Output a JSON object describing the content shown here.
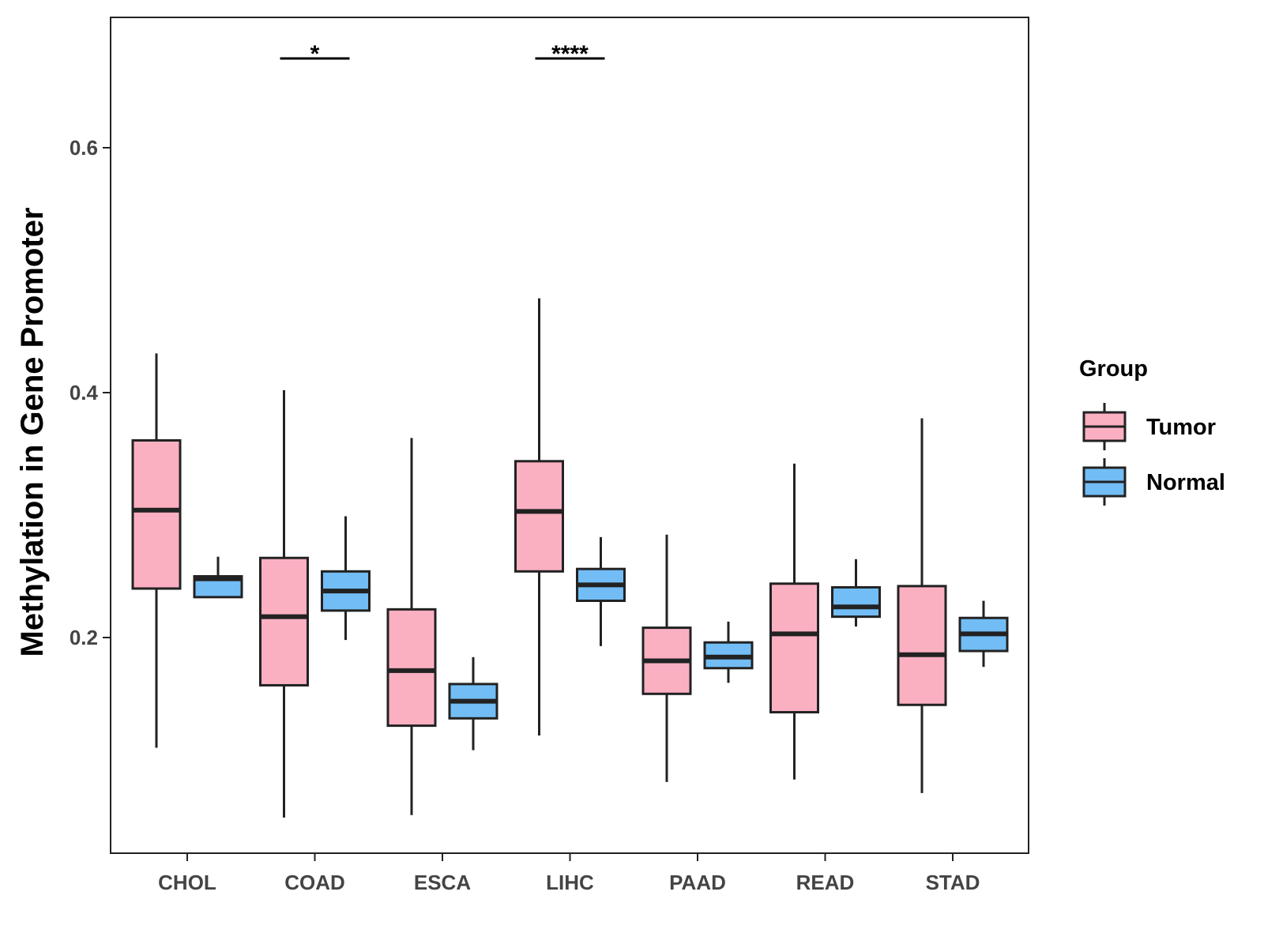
{
  "chart_data": {
    "type": "boxplot",
    "ylabel": "Methylation in Gene Promoter",
    "xlabel": "",
    "ylim": [
      0.04,
      0.7
    ],
    "yticks": [
      0.2,
      0.4,
      0.6
    ],
    "ytick_labels": [
      "0.2",
      "0.4",
      "0.6"
    ],
    "categories": [
      "CHOL",
      "COAD",
      "ESCA",
      "LIHC",
      "PAAD",
      "READ",
      "STAD"
    ],
    "legend": {
      "title": "Group",
      "placement": "right",
      "entries": [
        {
          "name": "Tumor",
          "color": "#FBB0C2"
        },
        {
          "name": "Normal",
          "color": "#72BDF5"
        }
      ]
    },
    "series": [
      {
        "name": "Tumor",
        "color": "#FBB0C2",
        "boxes": [
          {
            "category": "CHOL",
            "min": 0.11,
            "q1": 0.24,
            "median": 0.304,
            "q3": 0.361,
            "max": 0.432
          },
          {
            "category": "COAD",
            "min": 0.053,
            "q1": 0.161,
            "median": 0.217,
            "q3": 0.265,
            "max": 0.402
          },
          {
            "category": "ESCA",
            "min": 0.055,
            "q1": 0.128,
            "median": 0.173,
            "q3": 0.223,
            "max": 0.363
          },
          {
            "category": "LIHC",
            "min": 0.12,
            "q1": 0.254,
            "median": 0.303,
            "q3": 0.344,
            "max": 0.477
          },
          {
            "category": "PAAD",
            "min": 0.082,
            "q1": 0.154,
            "median": 0.181,
            "q3": 0.208,
            "max": 0.284
          },
          {
            "category": "READ",
            "min": 0.084,
            "q1": 0.139,
            "median": 0.203,
            "q3": 0.244,
            "max": 0.342
          },
          {
            "category": "STAD",
            "min": 0.073,
            "q1": 0.145,
            "median": 0.186,
            "q3": 0.242,
            "max": 0.379
          }
        ]
      },
      {
        "name": "Normal",
        "color": "#72BDF5",
        "boxes": [
          {
            "category": "CHOL",
            "min": 0.233,
            "q1": 0.233,
            "median": 0.248,
            "q3": 0.25,
            "max": 0.266
          },
          {
            "category": "COAD",
            "min": 0.198,
            "q1": 0.222,
            "median": 0.238,
            "q3": 0.254,
            "max": 0.299
          },
          {
            "category": "ESCA",
            "min": 0.108,
            "q1": 0.134,
            "median": 0.148,
            "q3": 0.162,
            "max": 0.184
          },
          {
            "category": "LIHC",
            "min": 0.193,
            "q1": 0.23,
            "median": 0.243,
            "q3": 0.256,
            "max": 0.282
          },
          {
            "category": "PAAD",
            "min": 0.163,
            "q1": 0.175,
            "median": 0.184,
            "q3": 0.196,
            "max": 0.213
          },
          {
            "category": "READ",
            "min": 0.209,
            "q1": 0.217,
            "median": 0.225,
            "q3": 0.241,
            "max": 0.264
          },
          {
            "category": "STAD",
            "min": 0.176,
            "q1": 0.189,
            "median": 0.203,
            "q3": 0.216,
            "max": 0.23
          }
        ]
      }
    ],
    "annotations": [
      {
        "category": "COAD",
        "label": "*"
      },
      {
        "category": "LIHC",
        "label": "****"
      }
    ]
  }
}
